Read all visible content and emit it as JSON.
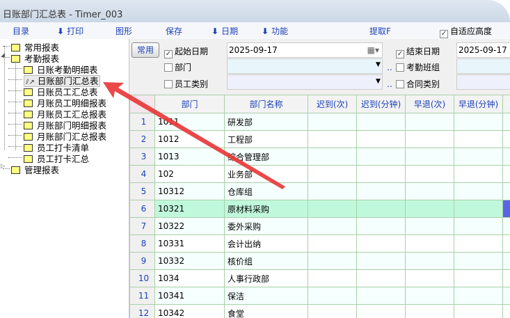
{
  "window": {
    "title": "日账部门汇总表 - Timer_003"
  },
  "toolbar": {
    "items": [
      {
        "label": "目录",
        "arrow": false
      },
      {
        "label": "打印",
        "arrow": true
      },
      {
        "label": "图形",
        "arrow": false
      },
      {
        "label": "保存",
        "arrow": false
      },
      {
        "label": "日期",
        "arrow": true
      },
      {
        "label": "功能",
        "arrow": true
      },
      {
        "label": "提取F",
        "arrow": false
      }
    ],
    "auto_height_label": "自适应高度",
    "auto_height_checked": true
  },
  "tree": {
    "nodes": [
      {
        "label": "常用报表",
        "level": 0
      },
      {
        "label": "考勤报表",
        "level": 0,
        "expanded": true
      },
      {
        "label": "日账考勤明细表",
        "level": 1
      },
      {
        "label": "日账部门汇总表",
        "level": 1,
        "selected": true,
        "icon": "chart-icon"
      },
      {
        "label": "日账员工汇总表",
        "level": 1
      },
      {
        "label": "月账员工明细报表",
        "level": 1
      },
      {
        "label": "月账员工汇总报表",
        "level": 1
      },
      {
        "label": "月账部门明细报表",
        "level": 1
      },
      {
        "label": "月账部门汇总报表",
        "level": 1
      },
      {
        "label": "员工打卡清单",
        "level": 1
      },
      {
        "label": "员工打卡汇总",
        "level": 1
      },
      {
        "label": "管理报表",
        "level": 0
      }
    ]
  },
  "filter": {
    "common_button": "常用",
    "start_date_label": "起始日期",
    "start_date_checked": true,
    "start_date": "2025-09-17",
    "end_date_label": "结束日期",
    "end_date_checked": true,
    "end_date": "2025-09-17",
    "dept_label": "部门",
    "dept_checked": false,
    "dept_value": "",
    "shift_label": "考勤班组",
    "shift_checked": false,
    "emp_type_label": "员工类别",
    "emp_type_checked": false,
    "emp_type_value": "",
    "contract_label": "合同类别",
    "contract_checked": false
  },
  "grid": {
    "columns": [
      "",
      "部门",
      "部门名称",
      "迟到(次)",
      "迟到(分钟)",
      "早退(次)",
      "早退(分钟)",
      ""
    ],
    "rows": [
      [
        "1",
        "1011",
        "研发部"
      ],
      [
        "2",
        "1012",
        "工程部"
      ],
      [
        "3",
        "1013",
        "综合管理部"
      ],
      [
        "4",
        "102",
        "业务部"
      ],
      [
        "5",
        "10312",
        "仓库组"
      ],
      [
        "6",
        "10321",
        "原材料采购"
      ],
      [
        "7",
        "10322",
        "委外采购"
      ],
      [
        "8",
        "10331",
        "会计出纳"
      ],
      [
        "9",
        "10332",
        "核价组"
      ],
      [
        "10",
        "1034",
        "人事行政部"
      ],
      [
        "11",
        "10341",
        "保洁"
      ],
      [
        "12",
        "10342",
        "食堂"
      ]
    ],
    "highlighted_row": 6
  },
  "colors": {
    "accent": "#1a3fb8",
    "highlight_row": "#c0f8dc",
    "annotation_arrow": "#e8383a"
  }
}
